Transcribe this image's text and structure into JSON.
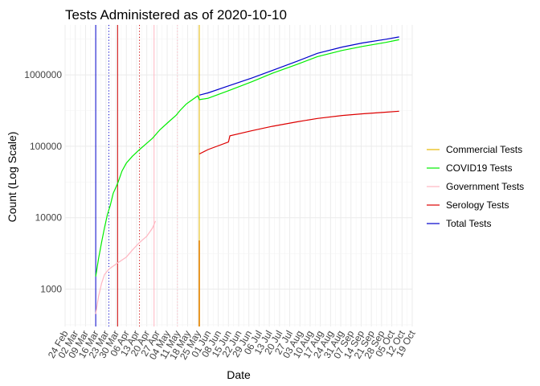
{
  "chart_data": {
    "type": "line",
    "title": "Tests Administered as of 2020-10-10",
    "xlabel": "Date",
    "ylabel": "Count (Log Scale)",
    "y_scale": "log10",
    "ylim": [
      300,
      5000000
    ],
    "xlim": [
      "2020-02-24",
      "2020-10-19"
    ],
    "grid": true,
    "legend_position": "right",
    "x_tick_labels": [
      "24 Feb",
      "02 Mar",
      "09 Mar",
      "16 Mar",
      "23 Mar",
      "30 Mar",
      "06 Apr",
      "13 Apr",
      "20 Apr",
      "27 Apr",
      "04 May",
      "11 May",
      "18 May",
      "25 May",
      "01 Jun",
      "08 Jun",
      "15 Jun",
      "22 Jun",
      "29 Jun",
      "06 Jul",
      "13 Jul",
      "20 Jul",
      "27 Jul",
      "03 Aug",
      "10 Aug",
      "17 Aug",
      "24 Aug",
      "31 Aug",
      "07 Sep",
      "14 Sep",
      "21 Sep",
      "28 Sep",
      "05 Oct",
      "12 Oct",
      "19 Oct"
    ],
    "x_tick_dates": [
      "2020-02-24",
      "2020-03-02",
      "2020-03-09",
      "2020-03-16",
      "2020-03-23",
      "2020-03-30",
      "2020-04-06",
      "2020-04-13",
      "2020-04-20",
      "2020-04-27",
      "2020-05-04",
      "2020-05-11",
      "2020-05-18",
      "2020-05-25",
      "2020-06-01",
      "2020-06-08",
      "2020-06-15",
      "2020-06-22",
      "2020-06-29",
      "2020-07-06",
      "2020-07-13",
      "2020-07-20",
      "2020-07-27",
      "2020-08-03",
      "2020-08-10",
      "2020-08-17",
      "2020-08-24",
      "2020-08-31",
      "2020-09-07",
      "2020-09-14",
      "2020-09-21",
      "2020-09-28",
      "2020-10-05",
      "2020-10-12",
      "2020-10-19"
    ],
    "y_ticks": [
      1000,
      10000,
      100000,
      1000000
    ],
    "y_tick_labels": [
      "1000",
      "10000",
      "100000",
      "1000000"
    ],
    "series": [
      {
        "name": "Commercial Tests",
        "color": "#E6B800",
        "points": [
          [
            "2020-05-26",
            4800
          ],
          [
            "2020-05-26",
            300
          ]
        ]
      },
      {
        "name": "COVID19 Tests",
        "color": "#00EE00",
        "points": [
          [
            "2020-03-16",
            1500
          ],
          [
            "2020-03-18",
            2700
          ],
          [
            "2020-03-20",
            4500
          ],
          [
            "2020-03-22",
            7200
          ],
          [
            "2020-03-24",
            11000
          ],
          [
            "2020-03-26",
            15000
          ],
          [
            "2020-03-28",
            22000
          ],
          [
            "2020-03-31",
            30000
          ],
          [
            "2020-04-03",
            45000
          ],
          [
            "2020-04-06",
            58000
          ],
          [
            "2020-04-10",
            72000
          ],
          [
            "2020-04-15",
            90000
          ],
          [
            "2020-04-20",
            110000
          ],
          [
            "2020-04-24",
            130000
          ],
          [
            "2020-04-29",
            170000
          ],
          [
            "2020-05-05",
            220000
          ],
          [
            "2020-05-10",
            270000
          ],
          [
            "2020-05-13",
            320000
          ],
          [
            "2020-05-17",
            390000
          ],
          [
            "2020-05-22",
            460000
          ],
          [
            "2020-05-25",
            510000
          ],
          [
            "2020-05-26",
            450000
          ],
          [
            "2020-06-01",
            470000
          ],
          [
            "2020-06-15",
            600000
          ],
          [
            "2020-07-01",
            800000
          ],
          [
            "2020-07-15",
            1050000
          ],
          [
            "2020-08-01",
            1400000
          ],
          [
            "2020-08-15",
            1800000
          ],
          [
            "2020-09-01",
            2200000
          ],
          [
            "2020-09-15",
            2500000
          ],
          [
            "2020-10-01",
            2850000
          ],
          [
            "2020-10-10",
            3100000
          ]
        ]
      },
      {
        "name": "Government Tests",
        "color": "#FFB6C1",
        "points": [
          [
            "2020-03-16",
            450
          ],
          [
            "2020-03-18",
            800
          ],
          [
            "2020-03-20",
            1200
          ],
          [
            "2020-03-22",
            1600
          ],
          [
            "2020-03-25",
            1900
          ],
          [
            "2020-03-28",
            2100
          ],
          [
            "2020-04-01",
            2400
          ],
          [
            "2020-04-06",
            2800
          ],
          [
            "2020-04-10",
            3500
          ],
          [
            "2020-04-15",
            4500
          ],
          [
            "2020-04-20",
            5500
          ],
          [
            "2020-04-24",
            7200
          ],
          [
            "2020-04-26",
            9000
          ]
        ]
      },
      {
        "name": "Serology Tests",
        "color": "#DD0000",
        "points": [
          [
            "2020-05-26",
            78000
          ],
          [
            "2020-06-01",
            90000
          ],
          [
            "2020-06-15",
            115000
          ],
          [
            "2020-06-16",
            140000
          ],
          [
            "2020-07-01",
            165000
          ],
          [
            "2020-07-15",
            190000
          ],
          [
            "2020-08-01",
            220000
          ],
          [
            "2020-08-15",
            245000
          ],
          [
            "2020-09-01",
            270000
          ],
          [
            "2020-09-15",
            285000
          ],
          [
            "2020-10-01",
            300000
          ],
          [
            "2020-10-10",
            310000
          ]
        ]
      },
      {
        "name": "Total Tests",
        "color": "#0000CC",
        "points": [
          [
            "2020-05-26",
            520000
          ],
          [
            "2020-06-01",
            560000
          ],
          [
            "2020-06-15",
            700000
          ],
          [
            "2020-07-01",
            900000
          ],
          [
            "2020-07-15",
            1150000
          ],
          [
            "2020-08-01",
            1550000
          ],
          [
            "2020-08-15",
            2000000
          ],
          [
            "2020-09-01",
            2450000
          ],
          [
            "2020-09-15",
            2800000
          ],
          [
            "2020-10-01",
            3150000
          ],
          [
            "2020-10-10",
            3400000
          ]
        ]
      }
    ],
    "vertical_lines": [
      {
        "date": "2020-03-16",
        "color": "#0000CC",
        "style": "solid"
      },
      {
        "date": "2020-03-25",
        "color": "#0000CC",
        "style": "dotted"
      },
      {
        "date": "2020-03-31",
        "color": "#CC0000",
        "style": "solid"
      },
      {
        "date": "2020-04-15",
        "color": "#CC0000",
        "style": "dotted"
      },
      {
        "date": "2020-04-25",
        "color": "#FFB6C1",
        "style": "solid"
      },
      {
        "date": "2020-05-11",
        "color": "#FFB6C1",
        "style": "dotted"
      },
      {
        "date": "2020-05-26",
        "color": "#E6B800",
        "style": "solid"
      },
      {
        "date": "2020-05-26",
        "color": "#DD0000",
        "style": "solid",
        "y_top": 4800
      }
    ]
  }
}
